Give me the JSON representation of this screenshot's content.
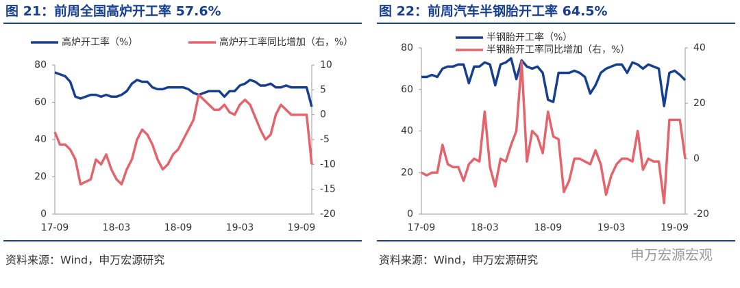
{
  "chart_data": [
    {
      "type": "line",
      "title": "图 21：前周全国高炉开工率 57.6%",
      "source": "资料来源：Wind，申万宏源研究",
      "categories": [
        "17-09",
        null,
        null,
        null,
        null,
        null,
        null,
        null,
        null,
        null,
        null,
        null,
        "18-03",
        null,
        null,
        null,
        null,
        null,
        null,
        null,
        null,
        null,
        null,
        null,
        "18-09",
        null,
        null,
        null,
        null,
        null,
        null,
        null,
        null,
        null,
        null,
        null,
        "19-03",
        null,
        null,
        null,
        null,
        null,
        null,
        null,
        null,
        null,
        null,
        null,
        "19-09",
        null,
        null
      ],
      "ylim": [
        0,
        80
      ],
      "yticks": [
        0,
        20,
        40,
        60,
        80
      ],
      "y2lim": [
        -20,
        10
      ],
      "y2ticks": [
        -20,
        -15,
        -10,
        -5,
        0,
        5,
        10
      ],
      "legend": "top",
      "series": [
        {
          "name": "高炉开工率（%）",
          "color": "#173f8f",
          "values": [
            76,
            75,
            74,
            71,
            63,
            62,
            63,
            64,
            64,
            63,
            64,
            63,
            63,
            64,
            66,
            70,
            72,
            71,
            71,
            68,
            67,
            67,
            68,
            68,
            68,
            68,
            67,
            65,
            64,
            65,
            66,
            66,
            66,
            63,
            66,
            66,
            69,
            70,
            72,
            71,
            69,
            69,
            70,
            68,
            68,
            69,
            68,
            68,
            68,
            68,
            57.6
          ]
        },
        {
          "name": "高炉开工率同比增加（右，%）",
          "color": "#e5636a",
          "axis": "y2",
          "values": [
            -3.5,
            -6,
            -6,
            -7,
            -9,
            -14,
            -13.5,
            -13,
            -9,
            -10,
            -8,
            -11,
            -13,
            -14,
            -11,
            -9,
            -5,
            -3,
            -4,
            -6,
            -9,
            -11,
            -10,
            -8,
            -7,
            -5,
            -3,
            -1,
            4,
            3,
            2,
            1,
            1,
            2,
            0.5,
            0,
            2,
            3,
            2,
            -0.5,
            -3,
            -5,
            -4,
            0,
            2,
            1,
            0,
            0,
            0,
            0,
            -10
          ]
        }
      ]
    },
    {
      "type": "line",
      "title": "图 22：前周汽车半钢胎开工率 64.5%",
      "source": "资料来源：Wind，申万宏源研究",
      "categories": [
        "17-09",
        null,
        null,
        null,
        null,
        null,
        null,
        null,
        null,
        null,
        null,
        null,
        "18-03",
        null,
        null,
        null,
        null,
        null,
        null,
        null,
        null,
        null,
        null,
        null,
        "18-09",
        null,
        null,
        null,
        null,
        null,
        null,
        null,
        null,
        null,
        null,
        null,
        "19-03",
        null,
        null,
        null,
        null,
        null,
        null,
        null,
        null,
        null,
        null,
        null,
        "19-09",
        null,
        null
      ],
      "ylim": [
        0,
        80
      ],
      "yticks": [
        0,
        20,
        40,
        60,
        80
      ],
      "y2lim": [
        -20,
        40
      ],
      "y2ticks": [
        -20,
        0,
        20,
        40
      ],
      "legend": "inside-top",
      "series": [
        {
          "name": "半钢胎开工率（%）",
          "color": "#173f8f",
          "values": [
            66,
            66,
            67,
            66,
            70,
            71,
            71,
            72,
            72,
            63,
            71,
            71,
            73,
            72,
            62,
            72,
            73,
            75,
            65,
            74,
            71,
            70,
            71,
            68,
            55,
            54,
            68,
            68,
            68,
            69,
            68,
            66,
            58,
            62,
            68,
            70,
            71,
            72,
            72,
            68,
            73,
            72,
            70,
            72,
            71,
            70,
            52,
            68,
            69,
            67,
            64.5
          ]
        },
        {
          "name": "半钢胎开工率同比增加（右，%）",
          "color": "#e5636a",
          "axis": "y2",
          "values": [
            -5,
            -6,
            -5,
            -5,
            5,
            -2,
            -3,
            -3,
            -8,
            -2,
            0,
            -1,
            17,
            -3,
            -10,
            0,
            -1,
            5,
            10,
            35,
            -1,
            10,
            8,
            2,
            17,
            8,
            7,
            -12,
            -8,
            0,
            0,
            -1,
            -2,
            3,
            -2,
            -13,
            -6,
            -2,
            0,
            0,
            -1,
            10,
            -4,
            0,
            -1,
            -1,
            -16,
            14,
            14,
            14,
            0
          ]
        }
      ]
    }
  ],
  "watermark": "申万宏源宏观"
}
